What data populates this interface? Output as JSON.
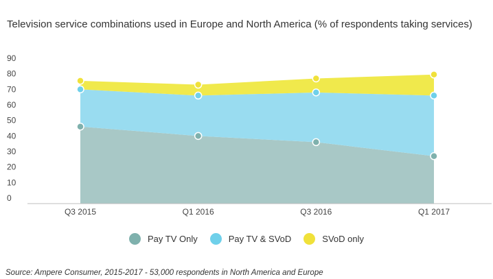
{
  "chart_data": {
    "type": "area",
    "stacked": true,
    "title": "Television service combinations used in Europe and North America (% of respondents taking services)",
    "categories": [
      "Q3 2015",
      "Q1 2016",
      "Q3 2016",
      "Q1 2017"
    ],
    "ylim": [
      0,
      90
    ],
    "yticks": [
      0,
      10,
      20,
      30,
      40,
      50,
      60,
      70,
      80,
      90
    ],
    "grid": false,
    "legend_position": "bottom",
    "series": [
      {
        "name": "Pay TV Only",
        "values": [
          46,
          40,
          36,
          27
        ],
        "color": "#7fb1ad",
        "fill": "#a8c8c6"
      },
      {
        "name": "Pay TV & SVoD",
        "values": [
          24,
          26,
          32,
          39
        ],
        "color": "#6fd0ea",
        "fill": "#99dcf0"
      },
      {
        "name": "SVoD only",
        "values": [
          5.5,
          7,
          9,
          13.5
        ],
        "color": "#f0e13a",
        "fill": "#f0e94c"
      }
    ],
    "source": "Source: Ampere Consumer, 2015-2017 - 53,000 respondents in North America and Europe"
  }
}
